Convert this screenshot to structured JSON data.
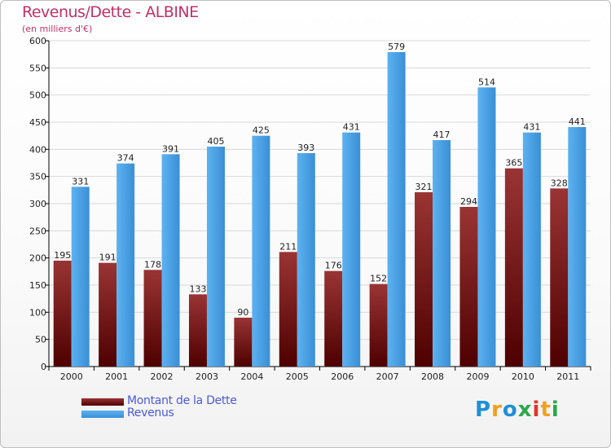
{
  "header": {
    "title": "Revenus/Dette - ALBINE",
    "subtitle": "(en milliers d'€)"
  },
  "colors": {
    "title": "#c0306a",
    "debt_bar": "#7a1d1d",
    "revenue_bar": "#4aa3e8",
    "legend_text": "#4b5ad6"
  },
  "legend": {
    "debt": "Montant de la Dette",
    "revenue": "Revenus"
  },
  "logo": {
    "text": "Proxiti"
  },
  "chart_data": {
    "type": "bar",
    "title": "Revenus/Dette - ALBINE",
    "ylabel": "(en milliers d'€)",
    "xlabel": "",
    "ylim": [
      0,
      600
    ],
    "yticks": [
      0,
      50,
      100,
      150,
      200,
      250,
      300,
      350,
      400,
      450,
      500,
      550,
      600
    ],
    "grid": true,
    "legend_position": "bottom-left",
    "categories": [
      "2000",
      "2001",
      "2002",
      "2003",
      "2004",
      "2005",
      "2006",
      "2007",
      "2008",
      "2009",
      "2010",
      "2011"
    ],
    "series": [
      {
        "name": "Montant de la Dette",
        "values": [
          195,
          191,
          178,
          133,
          90,
          211,
          176,
          152,
          321,
          294,
          365,
          328
        ]
      },
      {
        "name": "Revenus",
        "values": [
          331,
          374,
          391,
          405,
          425,
          393,
          431,
          579,
          417,
          514,
          431,
          441
        ]
      }
    ]
  }
}
